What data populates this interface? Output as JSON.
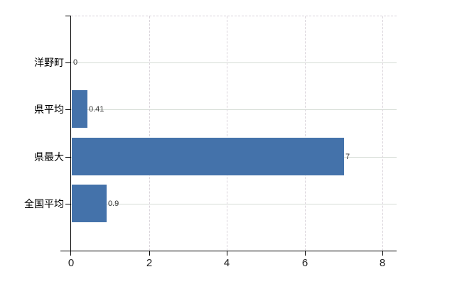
{
  "chart_data": {
    "type": "bar",
    "orientation": "horizontal",
    "title": "",
    "xlabel": "",
    "ylabel": "",
    "categories": [
      "洋野町",
      "県平均",
      "県最大",
      "全国平均"
    ],
    "values": [
      0,
      0.41,
      7,
      0.9
    ],
    "value_labels": [
      "0",
      "0.41",
      "7",
      "0.9"
    ],
    "xlim": [
      0,
      8.4
    ],
    "xticks": [
      "0",
      "2",
      "4",
      "6",
      "8"
    ],
    "xtick_values": [
      0,
      2,
      4,
      6,
      8
    ],
    "grid": "horizontal solid, vertical dashed, top border dashed",
    "legend": false,
    "colors": {
      "bar": "#4472aa",
      "axis": "#000000",
      "grid_horizontal": "#d6dcd6",
      "grid_vertical": "#d9d3da",
      "category_text": "#000000",
      "tick_text": "#222222",
      "value_text": "#333333",
      "background": "#ffffff"
    }
  }
}
